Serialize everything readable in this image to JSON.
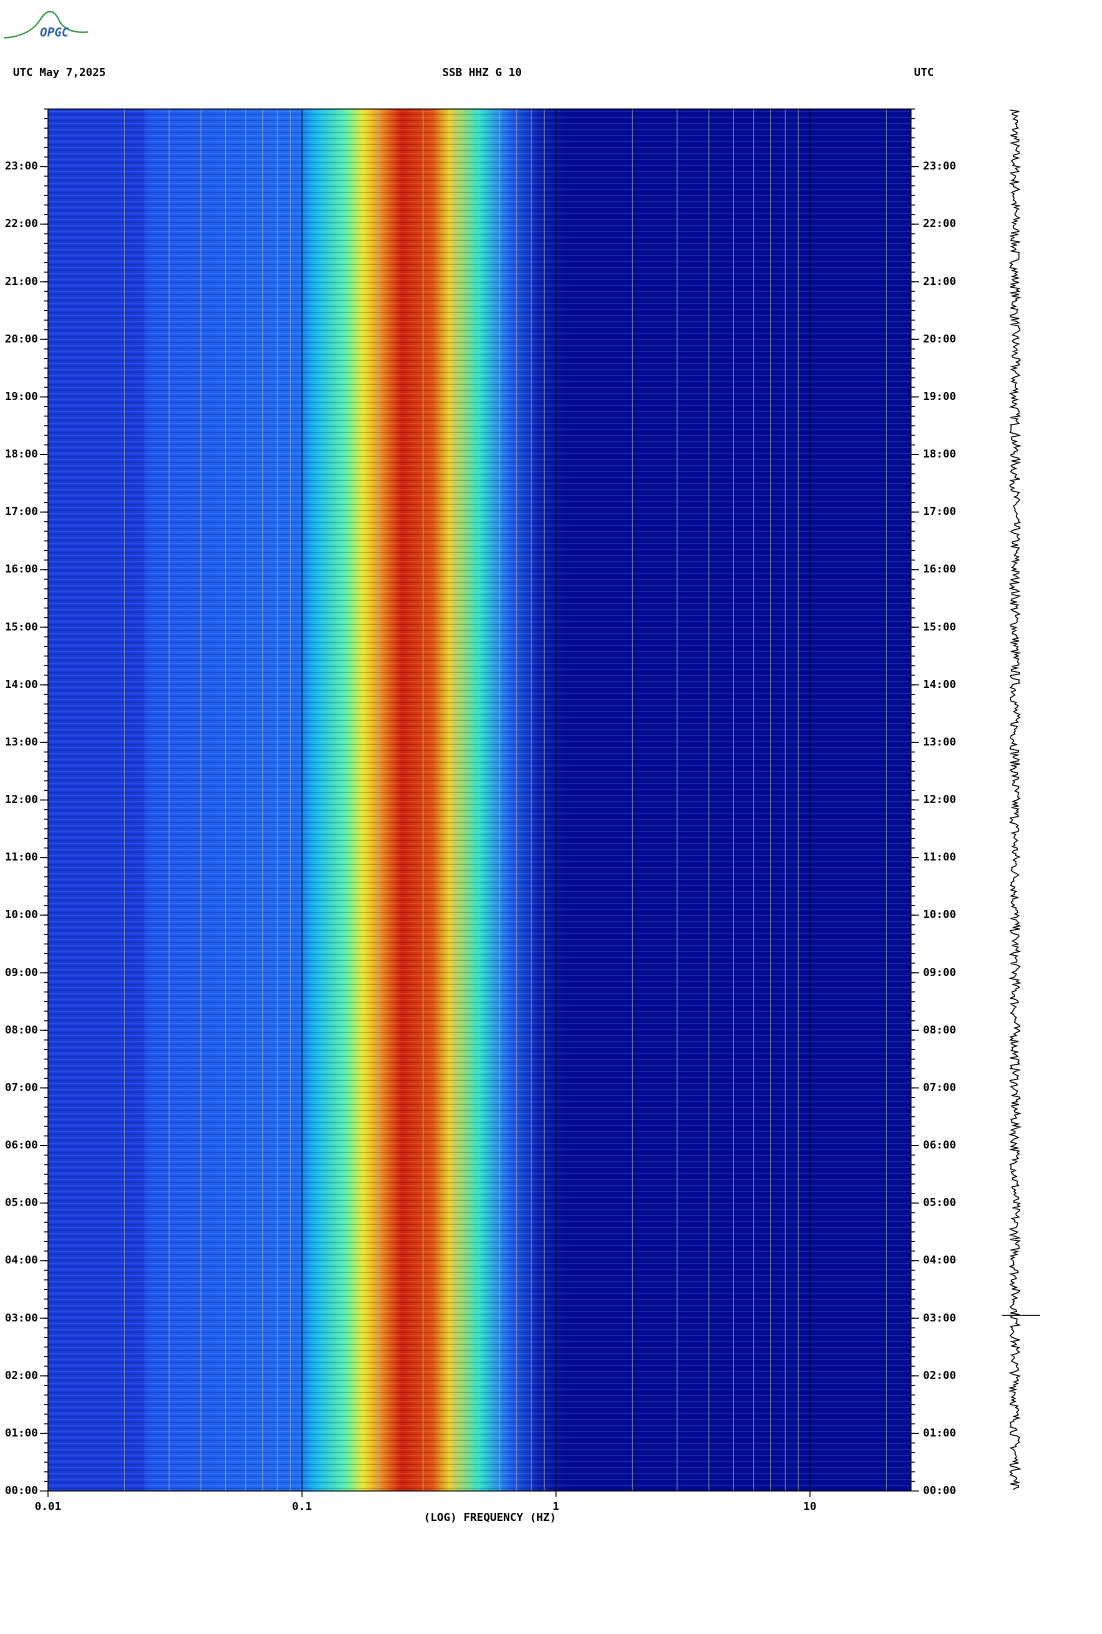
{
  "logo": "OPGC",
  "chart_data": {
    "type": "spectrogram",
    "title": "SSB HHZ G 10",
    "left_label": "UTC  May 7,2025",
    "right_label": "UTC",
    "x_label": "(LOG) FREQUENCY (HZ)",
    "x_scale": "log",
    "xlim": [
      0.01,
      25
    ],
    "xticks": [
      0.01,
      0.1,
      1,
      10
    ],
    "ylim": [
      0,
      24
    ],
    "yticks": [
      {
        "value": 0,
        "label": "00:00"
      },
      {
        "value": 1,
        "label": "01:00"
      },
      {
        "value": 2,
        "label": "02:00"
      },
      {
        "value": 3,
        "label": "03:00"
      },
      {
        "value": 4,
        "label": "04:00"
      },
      {
        "value": 5,
        "label": "05:00"
      },
      {
        "value": 6,
        "label": "06:00"
      },
      {
        "value": 7,
        "label": "07:00"
      },
      {
        "value": 8,
        "label": "08:00"
      },
      {
        "value": 9,
        "label": "09:00"
      },
      {
        "value": 10,
        "label": "10:00"
      },
      {
        "value": 11,
        "label": "11:00"
      },
      {
        "value": 12,
        "label": "12:00"
      },
      {
        "value": 13,
        "label": "13:00"
      },
      {
        "value": 14,
        "label": "14:00"
      },
      {
        "value": 15,
        "label": "15:00"
      },
      {
        "value": 16,
        "label": "16:00"
      },
      {
        "value": 17,
        "label": "17:00"
      },
      {
        "value": 18,
        "label": "18:00"
      },
      {
        "value": 19,
        "label": "19:00"
      },
      {
        "value": 20,
        "label": "20:00"
      },
      {
        "value": 21,
        "label": "21:00"
      },
      {
        "value": 22,
        "label": "22:00"
      },
      {
        "value": 23,
        "label": "23:00"
      }
    ],
    "grid": true
  }
}
